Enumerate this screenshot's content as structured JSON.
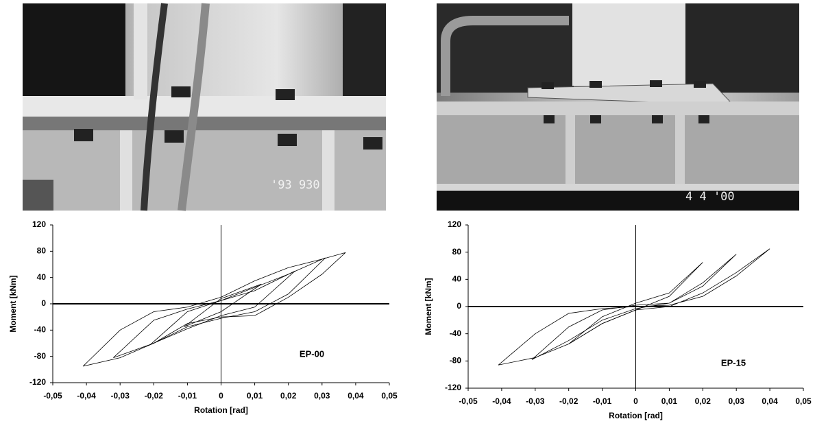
{
  "photos": [
    {
      "stamp": "'93 930"
    },
    {
      "stamp": "4 4 '00"
    }
  ],
  "chart_data": [
    {
      "type": "line",
      "xlabel": "Rotation [rad]",
      "ylabel": "Moment [kNm]",
      "annotation": "EP-00",
      "xlim": [
        -0.05,
        0.05
      ],
      "ylim": [
        -120,
        120
      ],
      "xticks": [
        {
          "value": -0.05,
          "label": "-0,05"
        },
        {
          "value": -0.04,
          "label": "-0,04"
        },
        {
          "value": -0.03,
          "label": "-0,03"
        },
        {
          "value": -0.02,
          "label": "-0,02"
        },
        {
          "value": -0.01,
          "label": "-0,01"
        },
        0,
        {
          "value": 0.01,
          "label": "0,01"
        },
        {
          "value": 0.02,
          "label": "0,02"
        },
        {
          "value": 0.03,
          "label": "0,03"
        },
        {
          "value": 0.04,
          "label": "0,04"
        },
        {
          "value": 0.05,
          "label": "0,05"
        }
      ],
      "yticks": [
        -120,
        -80,
        -40,
        0,
        40,
        80,
        120
      ],
      "series": [
        {
          "color": "#000000",
          "x": [
            -0.041,
            -0.03,
            -0.02,
            -0.01,
            0,
            0.01,
            0.02,
            0.03,
            0.037,
            0.03,
            0.02,
            0.01,
            0,
            -0.01,
            -0.02,
            -0.03,
            -0.041
          ],
          "values": [
            -95,
            -82,
            -60,
            -30,
            -20,
            -18,
            10,
            45,
            78,
            68,
            55,
            35,
            10,
            -5,
            -12,
            -40,
            -95
          ]
        },
        {
          "color": "#000000",
          "x": [
            -0.032,
            -0.02,
            -0.01,
            0,
            0.01,
            0.02,
            0.031,
            0.02,
            0.01,
            0,
            -0.01,
            -0.02,
            -0.032
          ],
          "values": [
            -82,
            -60,
            -35,
            -22,
            -12,
            15,
            70,
            45,
            25,
            5,
            -8,
            -25,
            -82
          ]
        },
        {
          "color": "#000000",
          "x": [
            -0.021,
            -0.01,
            0,
            0.01,
            0.022,
            0.01,
            0,
            -0.01,
            -0.021
          ],
          "values": [
            -62,
            -38,
            -18,
            -5,
            50,
            20,
            5,
            -12,
            -62
          ]
        },
        {
          "color": "#000000",
          "x": [
            -0.011,
            0,
            0.012,
            0,
            -0.011
          ],
          "values": [
            -35,
            -12,
            30,
            8,
            -35
          ]
        }
      ]
    },
    {
      "type": "line",
      "xlabel": "Rotation [rad]",
      "ylabel": "Moment [kNm]",
      "annotation": "EP-15",
      "xlim": [
        -0.05,
        0.05
      ],
      "ylim": [
        -120,
        120
      ],
      "xticks": [
        {
          "value": -0.05,
          "label": "-0,05"
        },
        {
          "value": -0.04,
          "label": "-0,04"
        },
        {
          "value": -0.03,
          "label": "-0,03"
        },
        {
          "value": -0.02,
          "label": "-0,02"
        },
        {
          "value": -0.01,
          "label": "-0,01"
        },
        0,
        {
          "value": 0.01,
          "label": "0,01"
        },
        {
          "value": 0.02,
          "label": "0,02"
        },
        {
          "value": 0.03,
          "label": "0,03"
        },
        {
          "value": 0.04,
          "label": "0,04"
        },
        {
          "value": 0.05,
          "label": "0,05"
        }
      ],
      "yticks": [
        -120,
        -80,
        -40,
        0,
        40,
        80,
        120
      ],
      "series": [
        {
          "color": "#000000",
          "x": [
            -0.041,
            -0.03,
            -0.02,
            -0.01,
            0,
            0.01,
            0.02,
            0.03,
            0.04,
            0.03,
            0.02,
            0.01,
            0,
            -0.01,
            -0.02,
            -0.03,
            -0.041
          ],
          "values": [
            -86,
            -75,
            -55,
            -25,
            -5,
            0,
            20,
            50,
            85,
            45,
            15,
            2,
            0,
            -3,
            -10,
            -40,
            -86
          ]
        },
        {
          "color": "#000000",
          "x": [
            -0.031,
            -0.02,
            -0.01,
            0,
            0.01,
            0.02,
            0.03,
            0.02,
            0.01,
            0,
            -0.01,
            -0.02,
            -0.031
          ],
          "values": [
            -78,
            -50,
            -20,
            -3,
            5,
            30,
            77,
            35,
            5,
            2,
            -5,
            -30,
            -78
          ]
        },
        {
          "color": "#000000",
          "x": [
            -0.02,
            -0.01,
            0,
            0.01,
            0.02,
            0.01,
            0,
            -0.01,
            -0.02
          ],
          "values": [
            -55,
            -25,
            -5,
            15,
            65,
            20,
            5,
            -15,
            -55
          ]
        }
      ]
    }
  ]
}
